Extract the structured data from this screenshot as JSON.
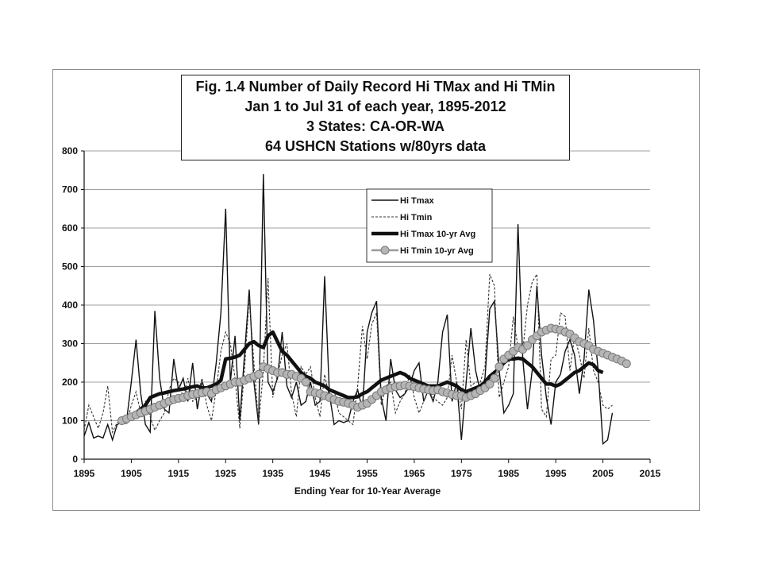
{
  "chart_data": {
    "type": "line",
    "title_lines": [
      "Fig. 1.4  Number of Daily Record Hi TMax and Hi TMin",
      "Jan 1 to Jul 31 of each year, 1895-2012",
      "3 States: CA-OR-WA",
      "64 USHCN Stations w/80yrs data"
    ],
    "xlabel": "Ending Year for 10-Year Average",
    "ylabel": "",
    "xlim": [
      1895,
      2015
    ],
    "ylim": [
      0,
      800
    ],
    "x_ticks": [
      "1895",
      "1905",
      "1915",
      "1925",
      "1935",
      "1945",
      "1955",
      "1965",
      "1975",
      "1985",
      "1995",
      "2005",
      "2015"
    ],
    "y_ticks": [
      "0",
      "100",
      "200",
      "300",
      "400",
      "500",
      "600",
      "700",
      "800"
    ],
    "grid": "horizontal",
    "legend_position": "upper-center",
    "colors": {
      "tmax": "#111111",
      "tmin": "#333333",
      "tmax_avg": "#111111",
      "tmin_avg_fill": "#b5b5b5",
      "tmin_avg_line": "#9a9a9a"
    },
    "series": [
      {
        "name": "Hi Tmax",
        "style": "solid-thin",
        "x_start": 1895,
        "values": [
          60,
          95,
          55,
          60,
          55,
          90,
          50,
          90,
          95,
          100,
          200,
          310,
          170,
          90,
          70,
          385,
          210,
          130,
          120,
          260,
          180,
          210,
          150,
          250,
          130,
          200,
          170,
          150,
          250,
          380,
          650,
          200,
          320,
          100,
          270,
          440,
          200,
          90,
          740,
          200,
          175,
          210,
          330,
          190,
          160,
          200,
          140,
          150,
          200,
          140,
          150,
          475,
          170,
          90,
          100,
          95,
          100,
          150,
          180,
          130,
          330,
          380,
          410,
          160,
          100,
          260,
          180,
          160,
          170,
          190,
          230,
          250,
          150,
          180,
          150,
          200,
          330,
          375,
          150,
          200,
          50,
          200,
          340,
          230,
          175,
          210,
          390,
          410,
          230,
          120,
          140,
          170,
          610,
          260,
          130,
          230,
          450,
          270,
          160,
          90,
          200,
          220,
          280,
          310,
          270,
          170,
          260,
          440,
          360,
          230,
          40,
          50,
          120
        ]
      },
      {
        "name": "Hi Tmin",
        "style": "dashed-thin",
        "x_start": 1895,
        "values": [
          75,
          140,
          110,
          80,
          120,
          190,
          70,
          95,
          100,
          90,
          140,
          175,
          120,
          150,
          110,
          75,
          100,
          120,
          180,
          210,
          200,
          160,
          210,
          150,
          160,
          210,
          140,
          100,
          180,
          280,
          330,
          300,
          210,
          80,
          230,
          420,
          250,
          90,
          230,
          470,
          160,
          220,
          270,
          300,
          170,
          110,
          240,
          220,
          240,
          160,
          110,
          220,
          160,
          180,
          120,
          110,
          100,
          90,
          190,
          345,
          260,
          350,
          380,
          140,
          190,
          200,
          120,
          150,
          170,
          220,
          160,
          120,
          150,
          180,
          160,
          150,
          140,
          160,
          270,
          200,
          130,
          310,
          190,
          200,
          200,
          240,
          480,
          450,
          160,
          200,
          240,
          370,
          290,
          280,
          400,
          460,
          480,
          130,
          110,
          260,
          270,
          380,
          370,
          230,
          320,
          270,
          210,
          340,
          230,
          200,
          140,
          130,
          140
        ]
      },
      {
        "name": "Hi Tmax 10-yr Avg",
        "style": "solid-thick",
        "x_start": 1904,
        "values": [
          100,
          105,
          120,
          130,
          140,
          160,
          165,
          170,
          172,
          175,
          178,
          180,
          182,
          185,
          188,
          190,
          185,
          185,
          190,
          195,
          205,
          260,
          262,
          265,
          270,
          285,
          300,
          305,
          295,
          290,
          320,
          330,
          305,
          280,
          270,
          255,
          240,
          225,
          215,
          210,
          200,
          195,
          190,
          180,
          175,
          170,
          165,
          160,
          160,
          162,
          170,
          175,
          185,
          195,
          205,
          210,
          215,
          220,
          225,
          220,
          210,
          205,
          200,
          195,
          190,
          190,
          190,
          195,
          200,
          195,
          190,
          180,
          175,
          180,
          185,
          190,
          200,
          215,
          225,
          235,
          250,
          260,
          260,
          262,
          260,
          250,
          240,
          225,
          210,
          195,
          195,
          190,
          195,
          205,
          215,
          225,
          230,
          240,
          250,
          245,
          230,
          225
        ]
      },
      {
        "name": "Hi Tmin 10-yr Avg",
        "style": "circle-markers",
        "x_start": 1903,
        "values": [
          100,
          105,
          110,
          115,
          120,
          125,
          130,
          135,
          140,
          145,
          150,
          155,
          158,
          160,
          165,
          168,
          170,
          172,
          175,
          170,
          180,
          185,
          190,
          195,
          200,
          200,
          205,
          210,
          215,
          220,
          240,
          235,
          230,
          225,
          225,
          220,
          220,
          215,
          210,
          200,
          175,
          172,
          170,
          165,
          160,
          155,
          150,
          148,
          145,
          140,
          135,
          140,
          145,
          155,
          165,
          175,
          180,
          185,
          188,
          190,
          192,
          190,
          188,
          185,
          182,
          180,
          178,
          180,
          175,
          172,
          168,
          165,
          165,
          160,
          165,
          170,
          178,
          185,
          195,
          210,
          240,
          260,
          270,
          280,
          290,
          285,
          295,
          310,
          320,
          330,
          335,
          340,
          338,
          335,
          330,
          325,
          315,
          305,
          300,
          295,
          285,
          280,
          275,
          270,
          265,
          260,
          255,
          248
        ]
      }
    ]
  }
}
